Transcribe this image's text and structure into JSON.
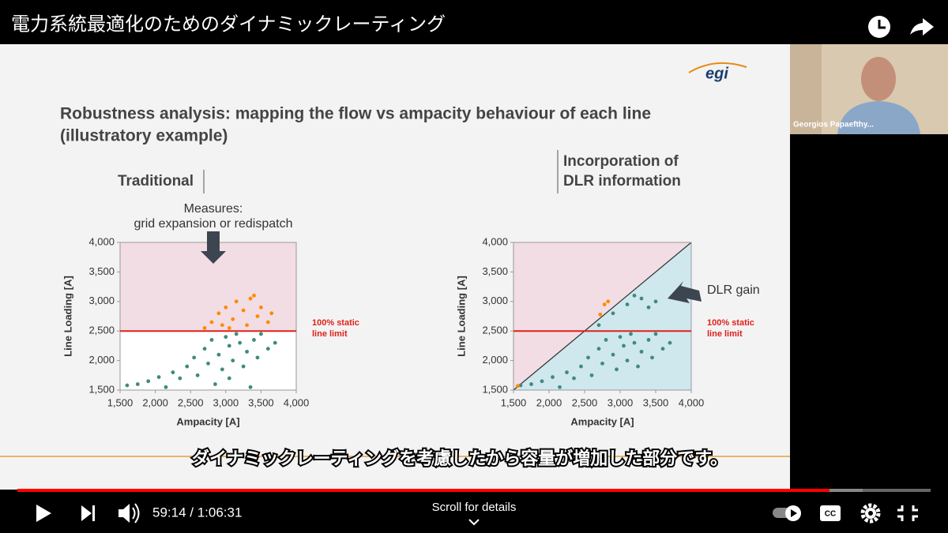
{
  "header": {
    "title": "電力系統最適化のためのダイナミックレーティング"
  },
  "slide": {
    "logo": "egi",
    "title_lines": [
      "Robustness analysis: mapping the flow vs ampacity behaviour of each line",
      "(illustratory example)"
    ]
  },
  "chart_data": [
    {
      "type": "scatter",
      "heading_lines": [
        "Traditional"
      ],
      "annotation_lines": [
        "Measures:",
        "grid expansion or redispatch"
      ],
      "limit_label_lines": [
        "100% static",
        "line limit"
      ],
      "static_limit": 2500,
      "x_label": "Ampacity [A]",
      "y_label": "Line Loading [A]",
      "xlim": [
        1500,
        4000
      ],
      "ylim": [
        1500,
        4000
      ],
      "xticks": [
        {
          "value": 1500,
          "label": "1,500"
        },
        {
          "value": 2000,
          "label": "2,000"
        },
        {
          "value": 2500,
          "label": "2,500"
        },
        {
          "value": 3000,
          "label": "3,000"
        },
        {
          "value": 3500,
          "label": "3,500"
        },
        {
          "value": 4000,
          "label": "4,000"
        }
      ],
      "yticks": [
        {
          "value": 1500,
          "label": "1,500"
        },
        {
          "value": 2000,
          "label": "2,000"
        },
        {
          "value": 2500,
          "label": "2,500"
        },
        {
          "value": 3000,
          "label": "3,000"
        },
        {
          "value": 3500,
          "label": "3,500"
        },
        {
          "value": 4000,
          "label": "4,000"
        }
      ],
      "series": [
        {
          "color": "#3f8a80",
          "x": [
            1600,
            1750,
            1900,
            2050,
            2150,
            2250,
            2350,
            2450,
            2550,
            2600,
            2700,
            2750,
            2800,
            2900,
            2950,
            3000,
            3050,
            3100,
            3150,
            3200,
            3250,
            3300,
            3400,
            3450,
            3500,
            3600,
            3700,
            2850,
            3050,
            3350
          ],
          "y": [
            1580,
            1600,
            1650,
            1720,
            1550,
            1800,
            1700,
            1900,
            2050,
            1750,
            2200,
            1950,
            2350,
            2100,
            1850,
            2400,
            2250,
            2000,
            2450,
            2300,
            1900,
            2150,
            2350,
            2050,
            2450,
            2200,
            2300,
            1600,
            1700,
            1550
          ]
        },
        {
          "color": "#ff8a00",
          "x": [
            2700,
            2800,
            2900,
            2950,
            3000,
            3100,
            3150,
            3250,
            3300,
            3400,
            3450,
            3500,
            3600,
            3650,
            3350,
            3050
          ],
          "y": [
            2550,
            2650,
            2800,
            2600,
            2900,
            2700,
            3000,
            2850,
            2600,
            3100,
            2750,
            2900,
            2650,
            2800,
            3050,
            2550
          ]
        }
      ]
    },
    {
      "type": "scatter",
      "heading_lines": [
        "Incorporation of",
        "DLR information"
      ],
      "annotation_lines": [
        "DLR gain"
      ],
      "limit_label_lines": [
        "100% static",
        "line limit"
      ],
      "static_limit": 2500,
      "x_label": "Ampacity [A]",
      "y_label": "Line Loading [A]",
      "xlim": [
        1500,
        4000
      ],
      "ylim": [
        1500,
        4000
      ],
      "xticks": [
        {
          "value": 1500,
          "label": "1,500"
        },
        {
          "value": 2000,
          "label": "2,000"
        },
        {
          "value": 2500,
          "label": "2,500"
        },
        {
          "value": 3000,
          "label": "3,000"
        },
        {
          "value": 3500,
          "label": "3,500"
        },
        {
          "value": 4000,
          "label": "4,000"
        }
      ],
      "yticks": [
        {
          "value": 1500,
          "label": "1,500"
        },
        {
          "value": 2000,
          "label": "2,000"
        },
        {
          "value": 2500,
          "label": "2,500"
        },
        {
          "value": 3000,
          "label": "3,000"
        },
        {
          "value": 3500,
          "label": "3,500"
        },
        {
          "value": 4000,
          "label": "4,000"
        }
      ],
      "series": [
        {
          "color": "#3f8a80",
          "x": [
            1600,
            1750,
            1900,
            2050,
            2150,
            2250,
            2350,
            2450,
            2550,
            2600,
            2700,
            2750,
            2800,
            2900,
            2950,
            3000,
            3050,
            3100,
            3150,
            3200,
            3250,
            3300,
            3400,
            3450,
            3500,
            3600,
            3700,
            2900,
            3100,
            3300,
            3400,
            3500,
            2700,
            3200
          ],
          "y": [
            1580,
            1600,
            1650,
            1720,
            1550,
            1800,
            1700,
            1900,
            2050,
            1750,
            2200,
            1950,
            2350,
            2100,
            1850,
            2400,
            2250,
            2000,
            2450,
            2300,
            1900,
            2150,
            2350,
            2050,
            2450,
            2200,
            2300,
            2800,
            2950,
            3050,
            2900,
            3000,
            2600,
            3100
          ]
        },
        {
          "color": "#ff8a00",
          "x": [
            1560,
            2780,
            2830,
            2720
          ],
          "y": [
            1570,
            2950,
            3000,
            2780
          ]
        }
      ]
    }
  ],
  "webcam": {
    "name": "Georgios Papaefthy..."
  },
  "subtitle": "ダイナミックレーティングを考慮したから容量が増加した部分です。",
  "player": {
    "time": "59:14 / 1:06:31",
    "scroll_hint": "Scroll for details"
  }
}
